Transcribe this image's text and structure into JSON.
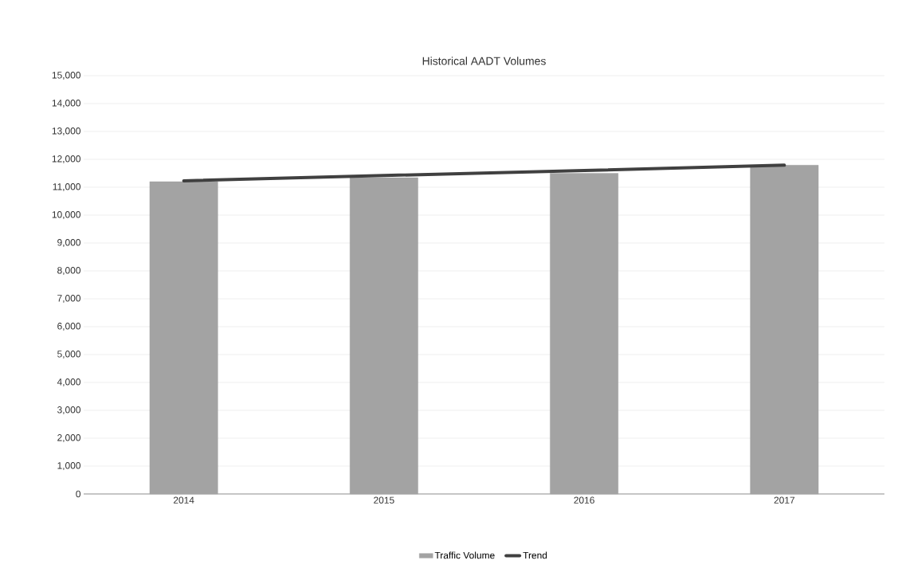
{
  "chart_data": {
    "type": "bar",
    "title": "Historical AADT Volumes",
    "categories": [
      "2014",
      "2015",
      "2016",
      "2017"
    ],
    "series": [
      {
        "name": "Traffic Volume",
        "color": "#a3a3a3",
        "values": [
          11200,
          11340,
          11500,
          11790
        ]
      },
      {
        "name": "Trend",
        "type": "line",
        "color": "#404040",
        "values": [
          11230,
          11420,
          11600,
          11790
        ]
      }
    ],
    "ylim": [
      0,
      15000
    ],
    "yticks": [
      0,
      {
        "value": 1000,
        "label": "1,000"
      },
      {
        "value": 2000,
        "label": "2,000"
      },
      {
        "value": 3000,
        "label": "3,000"
      },
      {
        "value": 4000,
        "label": "4,000"
      },
      {
        "value": 5000,
        "label": "5,000"
      },
      {
        "value": 6000,
        "label": "6,000"
      },
      {
        "value": 7000,
        "label": "7,000"
      },
      {
        "value": 8000,
        "label": "8,000"
      },
      {
        "value": 9000,
        "label": "9,000"
      },
      {
        "value": 10000,
        "label": "10,000"
      },
      {
        "value": 11000,
        "label": "11,000"
      },
      {
        "value": 12000,
        "label": "12,000"
      },
      {
        "value": 13000,
        "label": "13,000"
      },
      {
        "value": 14000,
        "label": "14,000"
      },
      {
        "value": 15000,
        "label": "15,000"
      }
    ],
    "grid": "y",
    "legend": "bottom",
    "marker": "none",
    "line_style": "solid"
  }
}
